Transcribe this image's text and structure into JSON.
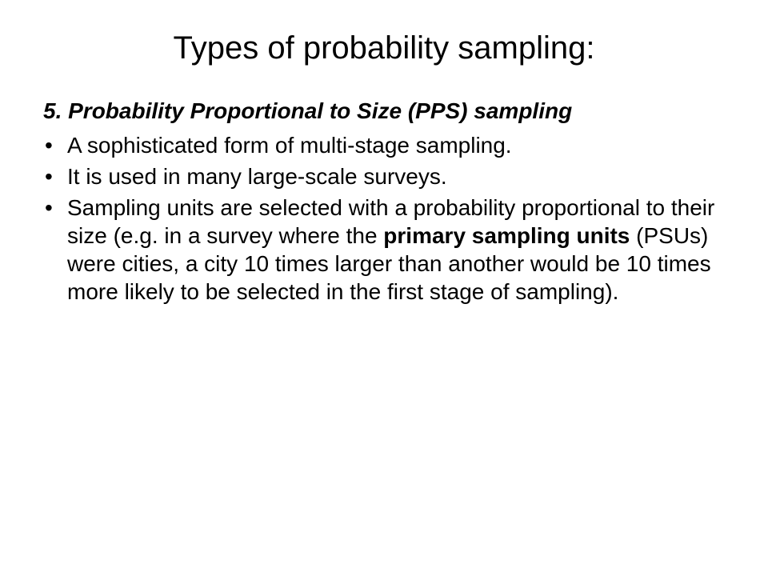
{
  "slide": {
    "title": "Types of probability sampling:",
    "subtitle": "5. Probability Proportional to Size (PPS) sampling",
    "bullets": [
      {
        "pre": "A sophisticated form of multi-stage sampling.",
        "bold": "",
        "post": ""
      },
      {
        "pre": "It is used in many large-scale surveys.",
        "bold": "",
        "post": ""
      },
      {
        "pre": "Sampling units are selected with a probability proportional to their size (e.g. in a survey where the ",
        "bold": "primary sampling units",
        "post": " (PSUs) were cities, a city 10 times larger than another would be 10 times more likely to be selected in the first stage of sampling)."
      }
    ]
  },
  "style": {
    "background_color": "#ffffff",
    "text_color": "#000000",
    "title_fontsize": 40,
    "body_fontsize": 28,
    "title_weight": 400,
    "subtitle_weight": 700,
    "subtitle_style": "italic",
    "font_family": "Arial"
  }
}
